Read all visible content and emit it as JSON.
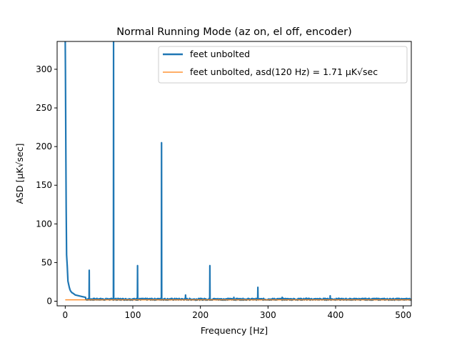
{
  "chart_data": {
    "type": "line",
    "title": "Normal Running Mode (az on, el off, encoder)",
    "xlabel": "Frequency [Hz]",
    "ylabel": "ASD [μK√sec]",
    "xlim": [
      -12,
      512
    ],
    "ylim": [
      -6,
      336
    ],
    "xticks": [
      0,
      100,
      200,
      300,
      400,
      500
    ],
    "yticks": [
      0,
      50,
      100,
      150,
      200,
      250,
      300
    ],
    "grid": false,
    "legend_placement": "top-right",
    "series": [
      {
        "name": "feet unbolted",
        "color": "#1f77b4",
        "baseline_y": 2.5,
        "noise_y": 1.2,
        "low_freq": {
          "x": [
            0,
            0.3,
            0.6,
            1.0,
            1.4,
            2.0,
            3.0,
            4.0,
            5.0,
            6.0,
            7.0,
            8.0,
            10.0,
            12.0,
            15.0,
            20.0,
            25.0,
            30.0
          ],
          "y": [
            336,
            300,
            250,
            180,
            120,
            60,
            45,
            26,
            22,
            18,
            15,
            13,
            11,
            10,
            8,
            7,
            6,
            5
          ]
        },
        "peaks": {
          "x": [
            35.6,
            71.3,
            106.9,
            142.6,
            178.2,
            213.9,
            249.5,
            285.1,
            320.8,
            356.4,
            392.0
          ],
          "y": [
            40,
            336,
            46,
            205,
            8,
            46,
            5,
            18,
            5,
            4,
            7
          ]
        }
      },
      {
        "name": "feet unbolted, asd(120 Hz) = 1.71 μK√sec",
        "color": "#ff7f0e",
        "x": [
          0,
          512
        ],
        "y": [
          1.71,
          1.71
        ]
      }
    ]
  }
}
